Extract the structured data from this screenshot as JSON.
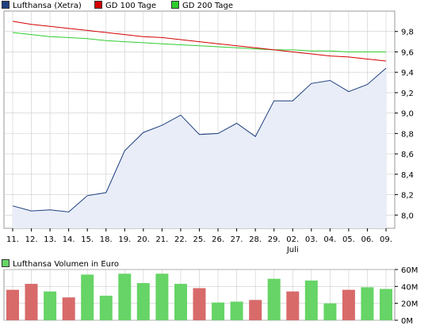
{
  "colors": {
    "price": "#1f3f7f",
    "price_fill": "#e8edf8",
    "gd100": "#d40000",
    "gd200": "#2fcc2f",
    "vol_up": "#66d466",
    "vol_down": "#d86a6a",
    "grid": "#cccccc",
    "frame": "#999999"
  },
  "legend": {
    "price": "Lufthansa (Xetra)",
    "gd100": "GD 100 Tage",
    "gd200": "GD 200 Tage",
    "volume": "Lufthansa Volumen in Euro"
  },
  "chart_data": [
    {
      "type": "area",
      "title": "",
      "categories": [
        "11.",
        "12.",
        "13.",
        "14.",
        "15.",
        "18.",
        "19.",
        "20.",
        "21.",
        "22.",
        "25.",
        "26.",
        "27.",
        "28.",
        "29.",
        "02.",
        "03.",
        "04.",
        "05.",
        "06.",
        "09."
      ],
      "month_label": {
        "text": "Juli",
        "under_category": "02."
      },
      "series": [
        {
          "name": "Lufthansa (Xetra)",
          "values": [
            8.09,
            8.04,
            8.05,
            8.03,
            8.19,
            8.22,
            8.63,
            8.81,
            8.88,
            8.98,
            8.79,
            8.8,
            8.9,
            8.77,
            9.12,
            9.12,
            9.29,
            9.32,
            9.21,
            9.28,
            9.44
          ]
        },
        {
          "name": "GD 100 Tage",
          "values": [
            9.9,
            9.87,
            9.85,
            9.83,
            9.81,
            9.79,
            9.77,
            9.75,
            9.74,
            9.72,
            9.7,
            9.68,
            9.66,
            9.64,
            9.62,
            9.6,
            9.58,
            9.56,
            9.55,
            9.53,
            9.51
          ]
        },
        {
          "name": "GD 200 Tage",
          "values": [
            9.79,
            9.77,
            9.75,
            9.74,
            9.73,
            9.71,
            9.7,
            9.69,
            9.68,
            9.67,
            9.66,
            9.65,
            9.64,
            9.63,
            9.62,
            9.62,
            9.61,
            9.61,
            9.6,
            9.6,
            9.6
          ]
        }
      ],
      "y_ticks": [
        "8,0",
        "8,2",
        "8,4",
        "8,6",
        "8,8",
        "9,0",
        "9,2",
        "9,4",
        "9,6",
        "9,8"
      ],
      "ylim": [
        7.87,
        10.0
      ],
      "grid": true
    },
    {
      "type": "bar",
      "title": "",
      "categories": [
        "11.",
        "12.",
        "13.",
        "14.",
        "15.",
        "18.",
        "19.",
        "20.",
        "21.",
        "22.",
        "25.",
        "26.",
        "27.",
        "28.",
        "29.",
        "02.",
        "03.",
        "04.",
        "05.",
        "06.",
        "09."
      ],
      "series": [
        {
          "name": "Lufthansa Volumen in Euro",
          "values": [
            36,
            43,
            34,
            27,
            54,
            29,
            55,
            44,
            55,
            43,
            38,
            21,
            22,
            24,
            49,
            34,
            47,
            20,
            36,
            39,
            37
          ],
          "direction": [
            "down",
            "down",
            "up",
            "down",
            "up",
            "up",
            "up",
            "up",
            "up",
            "up",
            "down",
            "up",
            "up",
            "down",
            "up",
            "down",
            "up",
            "up",
            "down",
            "up",
            "up"
          ]
        }
      ],
      "unit": "M",
      "y_ticks": [
        "0M",
        "20M",
        "40M",
        "60M"
      ],
      "ylim": [
        0,
        60
      ],
      "grid": true
    }
  ]
}
